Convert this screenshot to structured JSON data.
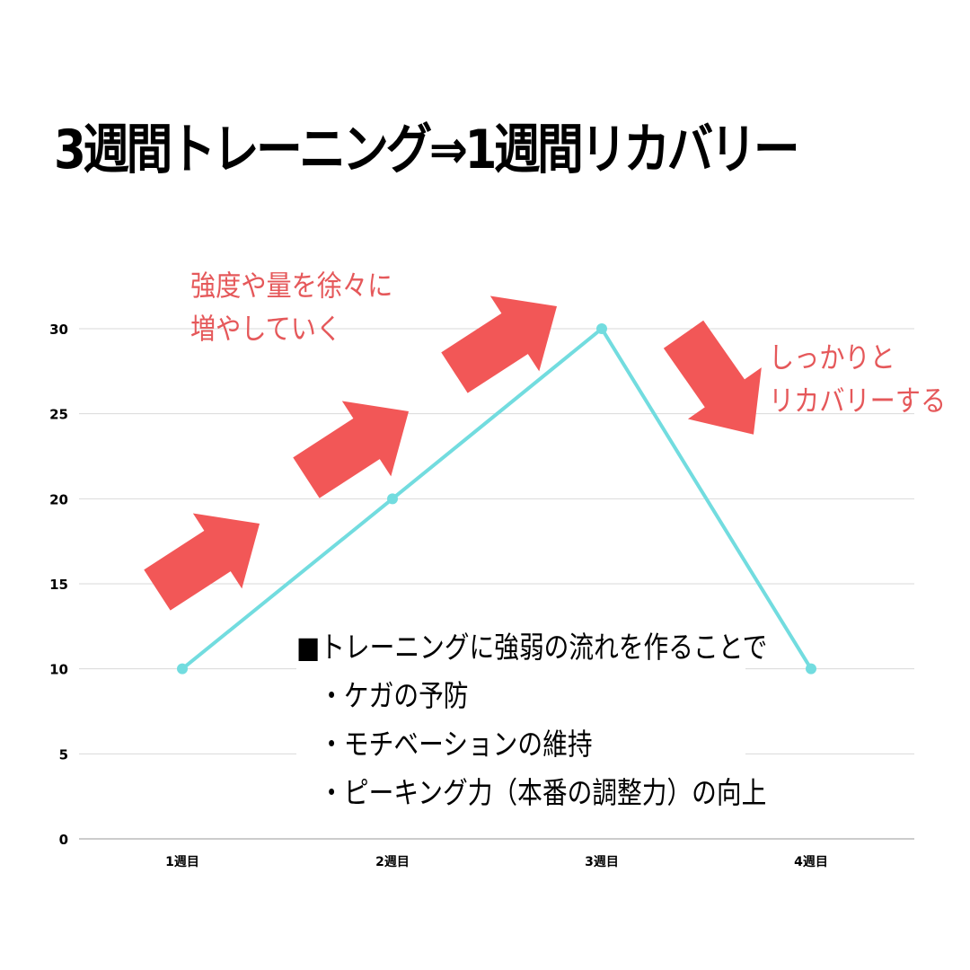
{
  "title": "3週間トレーニング⇒1週間リカバリー",
  "annotations": {
    "increase": [
      "強度や量を徐々に",
      "増やしていく"
    ],
    "recovery": [
      "しっかりと",
      "リカバリーする"
    ]
  },
  "textbox": {
    "heading": "■トレーニングに強弱の流れを作ることで",
    "items": [
      "・ケガの予防",
      "・モチベーションの維持",
      "・ピーキング力（本番の調整力）の向上"
    ]
  },
  "colors": {
    "line": "#72dcdf",
    "arrow": "#f25757",
    "grid": "#d9d9d9",
    "axis": "#999999"
  },
  "chart_data": {
    "type": "line",
    "categories": [
      "1週目",
      "2週目",
      "3週目",
      "4週目"
    ],
    "values": [
      10,
      20,
      30,
      10
    ],
    "ylim": [
      0,
      30
    ],
    "yticks": [
      0,
      5,
      10,
      15,
      20,
      25,
      30
    ],
    "grid": true,
    "legend": "none"
  }
}
